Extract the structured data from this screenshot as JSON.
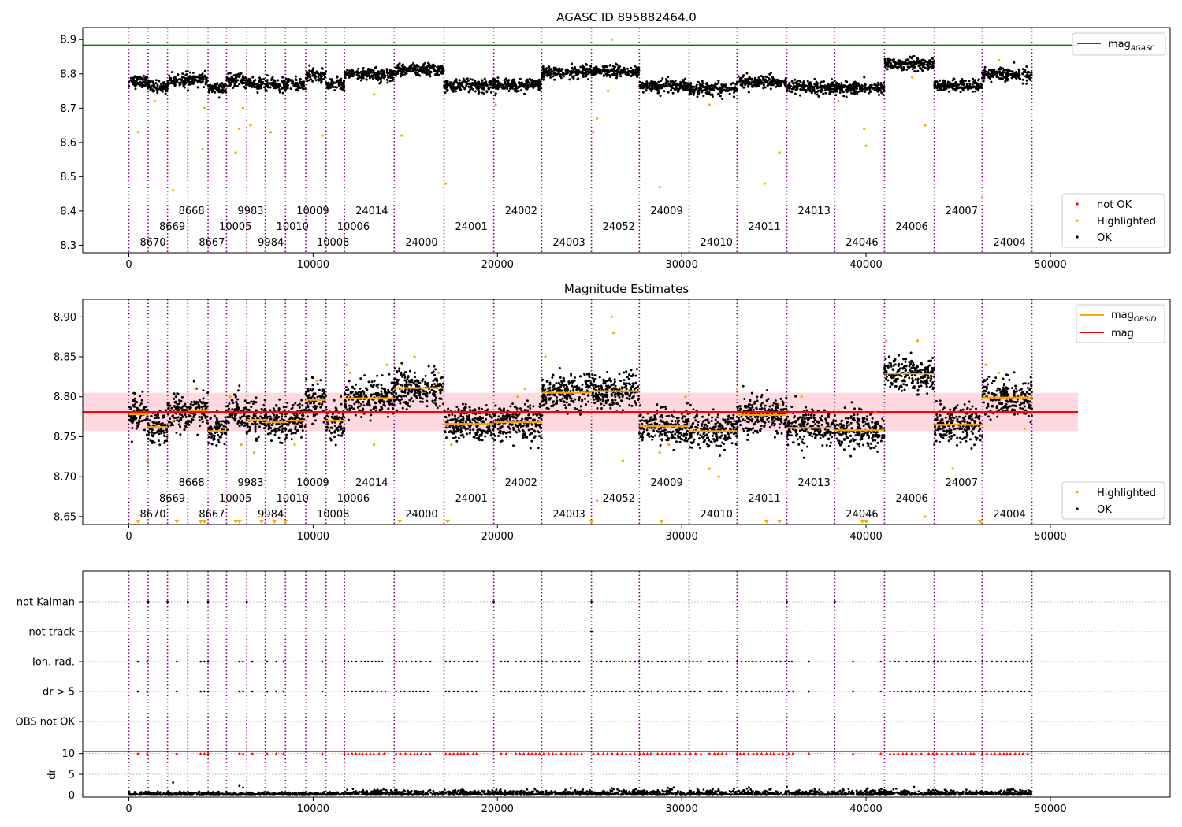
{
  "colors": {
    "obsid_line": "#800080",
    "ok": "#000000",
    "highlighted": "#ffa500",
    "not_ok": "#ff0000",
    "agasc_line": "#008000",
    "mean_line": "#ff0000",
    "mean_band": "#ffc0cb",
    "obsid_mag": "#ffa500",
    "grid": "#b0b0b0"
  },
  "obsids": [
    {
      "id": "8670",
      "start": 0,
      "end": 1050,
      "mag": 8.778,
      "level": 0
    },
    {
      "id": "8669",
      "start": 1050,
      "end": 2100,
      "mag": 8.762,
      "level": 1
    },
    {
      "id": "8668",
      "start": 2100,
      "end": 3200,
      "mag": 8.781,
      "level": 2
    },
    {
      "id": "8667",
      "start": 3200,
      "end": 4300,
      "mag": 8.783,
      "level": 0
    },
    {
      "id": "10005",
      "start": 4300,
      "end": 5300,
      "mag": 8.757,
      "level": 1
    },
    {
      "id": "9983",
      "start": 5300,
      "end": 6400,
      "mag": 8.781,
      "level": 2
    },
    {
      "id": "9984",
      "start": 6400,
      "end": 7400,
      "mag": 8.771,
      "level": 0
    },
    {
      "id": "10010",
      "start": 7400,
      "end": 8500,
      "mag": 8.768,
      "level": 1
    },
    {
      "id": "10009",
      "start": 8500,
      "end": 9600,
      "mag": 8.77,
      "level": 2
    },
    {
      "id": "10008",
      "start": 9600,
      "end": 10700,
      "mag": 8.796,
      "level": 0
    },
    {
      "id": "10006",
      "start": 10700,
      "end": 11700,
      "mag": 8.77,
      "level": 1
    },
    {
      "id": "24014",
      "start": 11700,
      "end": 14400,
      "mag": 8.798,
      "level": 2
    },
    {
      "id": "24000",
      "start": 14400,
      "end": 17100,
      "mag": 8.811,
      "level": 0
    },
    {
      "id": "24001",
      "start": 17100,
      "end": 19800,
      "mag": 8.766,
      "level": 1
    },
    {
      "id": "24002",
      "start": 19800,
      "end": 22400,
      "mag": 8.768,
      "level": 2
    },
    {
      "id": "24003",
      "start": 22400,
      "end": 25100,
      "mag": 8.805,
      "level": 0
    },
    {
      "id": "24052",
      "start": 25100,
      "end": 27700,
      "mag": 8.807,
      "level": 1
    },
    {
      "id": "24009",
      "start": 27700,
      "end": 30400,
      "mag": 8.763,
      "level": 2
    },
    {
      "id": "24010",
      "start": 30400,
      "end": 33000,
      "mag": 8.757,
      "level": 0
    },
    {
      "id": "24011",
      "start": 33000,
      "end": 35700,
      "mag": 8.777,
      "level": 1
    },
    {
      "id": "24013",
      "start": 35700,
      "end": 38300,
      "mag": 8.761,
      "level": 2
    },
    {
      "id": "24046",
      "start": 38300,
      "end": 41000,
      "mag": 8.758,
      "level": 0
    },
    {
      "id": "24006",
      "start": 41000,
      "end": 43700,
      "mag": 8.829,
      "level": 1
    },
    {
      "id": "24007",
      "start": 43700,
      "end": 46300,
      "mag": 8.765,
      "level": 2
    },
    {
      "id": "24004",
      "start": 46300,
      "end": 49000,
      "mag": 8.799,
      "level": 0
    }
  ],
  "chart_data": [
    {
      "id": "agasc",
      "type": "scatter",
      "title": "AGASC ID 895882464.0",
      "xlabel": "",
      "ylabel": "",
      "xlim": [
        -2500,
        56500
      ],
      "ylim": [
        8.278,
        8.935
      ],
      "xticks": [
        0,
        10000,
        20000,
        30000,
        40000,
        50000
      ],
      "xtick_labels": [
        "0",
        "10000",
        "20000",
        "30000",
        "40000",
        "50000"
      ],
      "yticks": [
        8.3,
        8.4,
        8.5,
        8.6,
        8.7,
        8.8,
        8.9
      ],
      "ytick_labels": [
        "8.3",
        "8.4",
        "8.5",
        "8.6",
        "8.7",
        "8.8",
        "8.9"
      ],
      "mag_agasc": 8.883,
      "mag_agasc_xrange": [
        -2500,
        51500
      ],
      "legend_top": {
        "placement": "upper right",
        "entries": [
          "mag_AGASC"
        ]
      },
      "legend_bottom": {
        "placement": "lower right",
        "entries": [
          "not OK",
          "Highlighted",
          "OK"
        ]
      },
      "highlighted_points": [
        [
          500,
          8.63
        ],
        [
          1400,
          8.72
        ],
        [
          2400,
          8.46
        ],
        [
          4000,
          8.58
        ],
        [
          4100,
          8.7
        ],
        [
          5800,
          8.57
        ],
        [
          6000,
          8.64
        ],
        [
          6200,
          8.7
        ],
        [
          6600,
          8.65
        ],
        [
          7700,
          8.63
        ],
        [
          10500,
          8.62
        ],
        [
          13300,
          8.74
        ],
        [
          14800,
          8.62
        ],
        [
          17200,
          8.48
        ],
        [
          19900,
          8.71
        ],
        [
          25200,
          8.63
        ],
        [
          25400,
          8.67
        ],
        [
          26000,
          8.75
        ],
        [
          26200,
          8.9
        ],
        [
          28800,
          8.47
        ],
        [
          31500,
          8.71
        ],
        [
          34500,
          8.48
        ],
        [
          35300,
          8.57
        ],
        [
          38500,
          8.72
        ],
        [
          39900,
          8.64
        ],
        [
          40000,
          8.59
        ],
        [
          42500,
          8.79
        ],
        [
          43200,
          8.65
        ],
        [
          46300,
          8.44
        ],
        [
          47200,
          8.84
        ]
      ]
    },
    {
      "id": "estimates",
      "type": "scatter",
      "title": "Magnitude Estimates",
      "xlabel": "",
      "ylabel": "",
      "xlim": [
        -2500,
        56500
      ],
      "ylim": [
        8.64,
        8.922
      ],
      "xticks": [
        0,
        10000,
        20000,
        30000,
        40000,
        50000
      ],
      "xtick_labels": [
        "0",
        "10000",
        "20000",
        "30000",
        "40000",
        "50000"
      ],
      "yticks": [
        8.65,
        8.7,
        8.75,
        8.8,
        8.85,
        8.9
      ],
      "ytick_labels": [
        "8.65",
        "8.70",
        "8.75",
        "8.80",
        "8.85",
        "8.90"
      ],
      "mag_mean": 8.781,
      "mag_band": [
        8.757,
        8.805
      ],
      "mag_mean_xrange": [
        -2500,
        51500
      ],
      "legend_top": {
        "placement": "upper right",
        "entries": [
          "mag_OBSID",
          "mag"
        ]
      },
      "legend_bottom": {
        "placement": "lower right",
        "entries": [
          "Highlighted",
          "OK"
        ]
      },
      "below_range_markers_x": [
        500,
        2600,
        3900,
        4100,
        5800,
        6000,
        7200,
        7900,
        8500,
        14700,
        17300,
        25100,
        28900,
        34600,
        35300,
        39800,
        40000,
        46200
      ],
      "highlighted_points": [
        [
          1000,
          8.72
        ],
        [
          2400,
          8.77
        ],
        [
          3600,
          8.81
        ],
        [
          5500,
          8.8
        ],
        [
          6100,
          8.74
        ],
        [
          6800,
          8.73
        ],
        [
          9000,
          8.74
        ],
        [
          10200,
          8.82
        ],
        [
          11800,
          8.84
        ],
        [
          12000,
          8.83
        ],
        [
          12500,
          8.79
        ],
        [
          13300,
          8.74
        ],
        [
          14000,
          8.84
        ],
        [
          15500,
          8.85
        ],
        [
          16800,
          8.83
        ],
        [
          17500,
          8.74
        ],
        [
          19900,
          8.71
        ],
        [
          21100,
          8.8
        ],
        [
          21500,
          8.81
        ],
        [
          22600,
          8.85
        ],
        [
          25400,
          8.67
        ],
        [
          26200,
          8.9
        ],
        [
          26300,
          8.88
        ],
        [
          26800,
          8.72
        ],
        [
          28800,
          8.73
        ],
        [
          29300,
          8.74
        ],
        [
          30200,
          8.8
        ],
        [
          31500,
          8.71
        ],
        [
          32000,
          8.7
        ],
        [
          33000,
          8.81
        ],
        [
          35300,
          8.79
        ],
        [
          36500,
          8.8
        ],
        [
          38500,
          8.71
        ],
        [
          40500,
          8.78
        ],
        [
          41100,
          8.87
        ],
        [
          42800,
          8.87
        ],
        [
          43200,
          8.65
        ],
        [
          44700,
          8.71
        ],
        [
          46500,
          8.84
        ],
        [
          47200,
          8.83
        ],
        [
          48600,
          8.76
        ]
      ]
    },
    {
      "id": "flags",
      "type": "scatter",
      "title": "",
      "xlim": [
        -2500,
        56500
      ],
      "categories": [
        "not Kalman",
        "not track",
        "Ion. rad.",
        "dr > 5",
        "OBS not OK"
      ],
      "flag_points": {
        "not Kalman": [
          1050,
          2100,
          3200,
          4300,
          6400,
          19800,
          25100,
          35700,
          38300
        ],
        "not track": [
          25080,
          25120
        ]
      },
      "flag_runs": {
        "Ion. rad.": [
          [
            11700,
            14000
          ],
          [
            14500,
            16400
          ],
          [
            17200,
            19000
          ],
          [
            20200,
            20700
          ],
          [
            21000,
            22800
          ],
          [
            23000,
            24700
          ],
          [
            25200,
            27000
          ],
          [
            27200,
            28500
          ],
          [
            28700,
            30000
          ],
          [
            30200,
            31200
          ],
          [
            31500,
            32500
          ],
          [
            33000,
            35700
          ],
          [
            35800,
            36200
          ],
          [
            40800,
            41000
          ],
          [
            41300,
            42000
          ],
          [
            42200,
            43200
          ],
          [
            43400,
            44800
          ],
          [
            45000,
            46000
          ],
          [
            46300,
            49000
          ]
        ],
        "dr > 5": [
          [
            11700,
            14000
          ],
          [
            14500,
            16400
          ],
          [
            17200,
            19000
          ],
          [
            20200,
            20700
          ],
          [
            21000,
            22800
          ],
          [
            23000,
            24700
          ],
          [
            25200,
            27000
          ],
          [
            27200,
            28500
          ],
          [
            28700,
            30000
          ],
          [
            30200,
            31200
          ],
          [
            31500,
            32500
          ],
          [
            33000,
            35700
          ],
          [
            35800,
            36200
          ],
          [
            40800,
            41000
          ],
          [
            41300,
            42000
          ],
          [
            42200,
            43200
          ],
          [
            43400,
            44800
          ],
          [
            45000,
            46000
          ],
          [
            46300,
            49000
          ]
        ]
      },
      "flag_isolated": {
        "Ion. rad.": [
          500,
          1000,
          2600,
          3900,
          4100,
          4300,
          6000,
          6200,
          6700,
          7500,
          8000,
          8400,
          10500,
          36900,
          39300
        ],
        "dr > 5": [
          500,
          1000,
          2600,
          3900,
          4100,
          4300,
          6000,
          6200,
          6700,
          7500,
          8000,
          8400,
          10500,
          36900,
          39300
        ]
      }
    },
    {
      "id": "dr",
      "type": "scatter",
      "xlabel": "",
      "ylabel": "dr",
      "xlim": [
        -2500,
        56500
      ],
      "ylim": [
        -0.5,
        10.5
      ],
      "yticks": [
        0,
        5,
        10
      ],
      "ytick_labels": [
        "0",
        "5",
        "10"
      ],
      "xticks": [
        0,
        10000,
        20000,
        30000,
        40000,
        50000
      ],
      "xtick_labels": [
        "0",
        "10000",
        "20000",
        "30000",
        "40000",
        "50000"
      ],
      "clipped_value": 10,
      "dr_outliers": [
        [
          2400,
          3
        ],
        [
          6000,
          2.2
        ],
        [
          6200,
          1.8
        ],
        [
          35700,
          2
        ]
      ]
    }
  ],
  "legend_labels": {
    "mag_agasc_main": "mag",
    "mag_agasc_sub": "AGASC",
    "mag_obsid_main": "mag",
    "mag_obsid_sub": "OBSID",
    "mag": "mag",
    "not_ok": "not OK",
    "highlighted": "Highlighted",
    "ok": "OK"
  }
}
